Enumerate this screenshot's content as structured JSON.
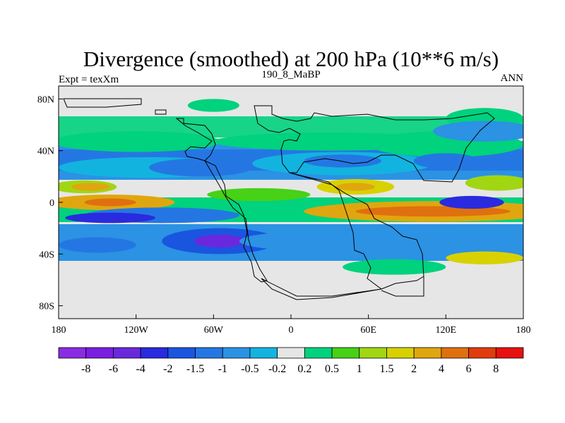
{
  "chart_data": {
    "type": "heatmap",
    "title": "Divergence (smoothed) at 200 hPa (10**6 m/s)",
    "left_label": "Expt = texXm",
    "center_label": "190_8_MaBP",
    "right_label": "ANN",
    "x_ticks": [
      {
        "value": -180,
        "label": "180"
      },
      {
        "value": -120,
        "label": "120W"
      },
      {
        "value": -60,
        "label": "60W"
      },
      {
        "value": 0,
        "label": "0"
      },
      {
        "value": 60,
        "label": "60E"
      },
      {
        "value": 120,
        "label": "120E"
      },
      {
        "value": 180,
        "label": "180"
      }
    ],
    "y_ticks": [
      {
        "value": 80,
        "label": "80N"
      },
      {
        "value": 40,
        "label": "40N"
      },
      {
        "value": 0,
        "label": "0"
      },
      {
        "value": -40,
        "label": "40S"
      },
      {
        "value": -80,
        "label": "80S"
      }
    ],
    "xlim": [
      -180,
      180
    ],
    "ylim": [
      -90,
      90
    ],
    "colorbar": {
      "colors": [
        "#8a2be2",
        "#7a1ee0",
        "#6a28dd",
        "#2a2adf",
        "#1a55e0",
        "#2477e3",
        "#2b92e4",
        "#13b3e0",
        "#e6e6e6",
        "#00d27d",
        "#47d117",
        "#a1d613",
        "#d8d102",
        "#e0a60f",
        "#e0700f",
        "#e03c0d",
        "#e5120f"
      ],
      "labels": [
        "-8",
        "-6",
        "-4",
        "-2",
        "-1.5",
        "-1",
        "-0.5",
        "-0.2",
        "0.2",
        "0.5",
        "1",
        "1.5",
        "2",
        "4",
        "6",
        "8"
      ]
    },
    "field": [
      {
        "lon": -120,
        "lat": 47,
        "rlon": 65,
        "rlat": 8,
        "level": 9
      },
      {
        "lon": 30,
        "lat": 47,
        "rlon": 90,
        "rlat": 7,
        "level": 9
      },
      {
        "lon": 120,
        "lat": 45,
        "rlon": 60,
        "rlat": 10,
        "level": 9
      },
      {
        "lon": 150,
        "lat": 65,
        "rlon": 30,
        "rlat": 8,
        "level": 9
      },
      {
        "lon": -60,
        "lat": 75,
        "rlon": 20,
        "rlat": 5,
        "level": 9
      },
      {
        "lon": -110,
        "lat": 27,
        "rlon": 70,
        "rlat": 8,
        "level": 7
      },
      {
        "lon": -70,
        "lat": 27,
        "rlon": 40,
        "rlat": 7,
        "level": 5
      },
      {
        "lon": 40,
        "lat": 30,
        "rlon": 70,
        "rlat": 9,
        "level": 7
      },
      {
        "lon": 40,
        "lat": 32,
        "rlon": 30,
        "rlat": 5,
        "level": 5
      },
      {
        "lon": 120,
        "lat": 32,
        "rlon": 25,
        "rlat": 6,
        "level": 5
      },
      {
        "lon": 150,
        "lat": 55,
        "rlon": 40,
        "rlat": 8,
        "level": 6
      },
      {
        "lon": -160,
        "lat": 12,
        "rlon": 25,
        "rlat": 5,
        "level": 11
      },
      {
        "lon": -155,
        "lat": 12,
        "rlon": 15,
        "rlat": 3,
        "level": 13
      },
      {
        "lon": 50,
        "lat": 12,
        "rlon": 30,
        "rlat": 6,
        "level": 12
      },
      {
        "lon": 50,
        "lat": 12,
        "rlon": 15,
        "rlat": 3,
        "level": 13
      },
      {
        "lon": 160,
        "lat": 15,
        "rlon": 25,
        "rlat": 6,
        "level": 11
      },
      {
        "lon": -25,
        "lat": 6,
        "rlon": 40,
        "rlat": 5,
        "level": 10
      },
      {
        "lon": -140,
        "lat": 0,
        "rlon": 50,
        "rlat": 6,
        "level": 13
      },
      {
        "lon": -140,
        "lat": 0,
        "rlon": 20,
        "rlat": 3,
        "level": 14
      },
      {
        "lon": 110,
        "lat": -7,
        "rlon": 100,
        "rlat": 8,
        "level": 13
      },
      {
        "lon": 110,
        "lat": -7,
        "rlon": 60,
        "rlat": 4,
        "level": 14
      },
      {
        "lon": 140,
        "lat": 0,
        "rlon": 25,
        "rlat": 5,
        "level": 3
      },
      {
        "lon": -100,
        "lat": -10,
        "rlon": 60,
        "rlat": 6,
        "level": 5
      },
      {
        "lon": -140,
        "lat": -12,
        "rlon": 35,
        "rlat": 4,
        "level": 3
      },
      {
        "lon": -55,
        "lat": -30,
        "rlon": 45,
        "rlat": 10,
        "level": 4
      },
      {
        "lon": -55,
        "lat": -30,
        "rlon": 20,
        "rlat": 5,
        "level": 2
      },
      {
        "lon": 10,
        "lat": -30,
        "rlon": 50,
        "rlat": 7,
        "level": 6
      },
      {
        "lon": -150,
        "lat": -33,
        "rlon": 30,
        "rlat": 6,
        "level": 5
      },
      {
        "lon": 150,
        "lat": -43,
        "rlon": 30,
        "rlat": 5,
        "level": 12
      },
      {
        "lon": 80,
        "lat": -50,
        "rlon": 40,
        "rlat": 6,
        "level": 9
      }
    ]
  }
}
